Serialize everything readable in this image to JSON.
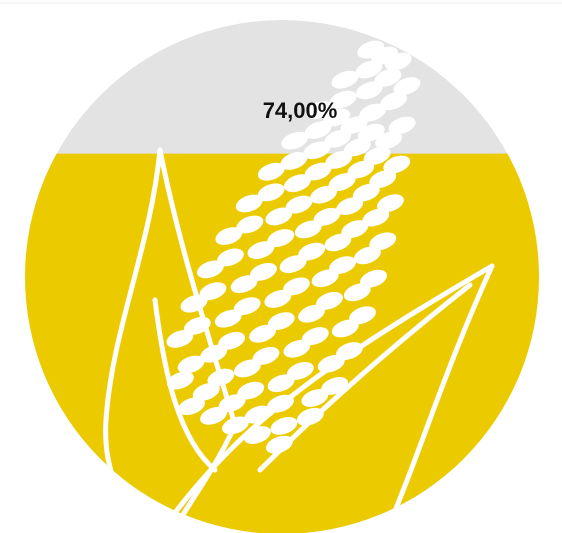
{
  "chart_data": {
    "type": "fill",
    "value": 74,
    "value_labels": [
      "74,00%"
    ],
    "ylim": [
      0,
      100
    ],
    "color": "#ebcb00",
    "background_color": "#e3e3e3"
  }
}
